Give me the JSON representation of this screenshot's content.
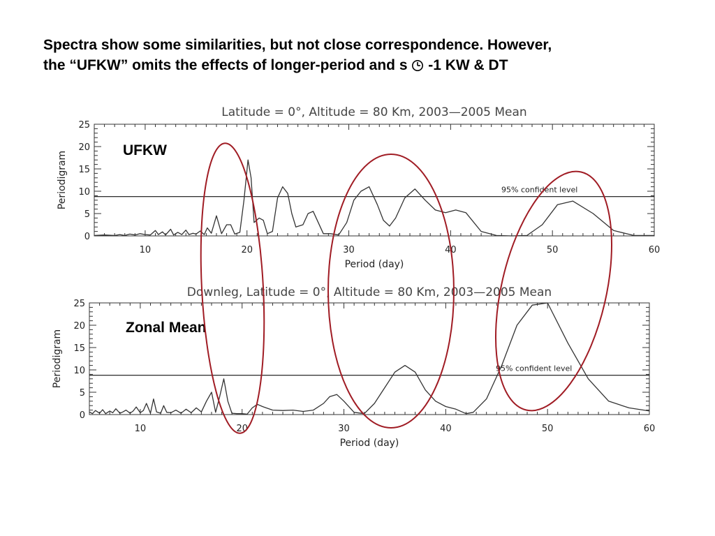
{
  "heading": {
    "line1": "Spectra show some similarities, but not close correspondence.  However,",
    "line2_before": "the “UFKW” omits the effects of longer-period and s",
    "line2_after": "-1 KW & DT",
    "symbol_icon": "clock-icon"
  },
  "colors": {
    "ellipse": "#a01c24",
    "series": "#333333",
    "threshold": "#111111",
    "axes": "#333333"
  },
  "chart_data": [
    {
      "type": "line",
      "label": "UFKW",
      "title": "Latitude = 0°, Altitude = 80 Km, 2003—2005 Mean",
      "xlabel": "Period (day)",
      "ylabel": "Periodigram",
      "xlim": [
        5,
        60
      ],
      "ylim": [
        0,
        25
      ],
      "xticks": [
        10,
        20,
        30,
        40,
        50,
        60
      ],
      "yticks": [
        0,
        5,
        10,
        15,
        20,
        25
      ],
      "grid": false,
      "threshold": {
        "value": 8.8,
        "label": "95% confident level"
      },
      "series": [
        {
          "x": [
            5,
            6,
            7,
            7.5,
            8,
            8.5,
            9,
            9.5,
            10,
            10.5,
            11,
            11.3,
            11.7,
            12,
            12.5,
            12.8,
            13.2,
            13.6,
            14,
            14.3,
            14.7,
            15,
            15.4,
            15.8,
            16.1,
            16.5,
            17,
            17.5,
            18,
            18.4,
            18.8,
            19.3,
            19.7,
            20.1,
            20.4,
            20.7,
            21.2,
            21.6,
            22,
            22.5,
            23,
            23.5,
            24,
            24.4,
            24.8,
            25.5,
            26,
            26.5,
            27,
            27.5,
            28.2,
            29,
            29.8,
            30.5,
            31.2,
            32,
            32.8,
            33.4,
            34,
            34.6,
            35.5,
            36.5,
            37.5,
            38.5,
            39.5,
            40.5,
            41.5,
            43,
            44.5,
            46,
            47.5,
            49,
            50.5,
            52,
            54,
            56,
            58,
            60
          ],
          "y": [
            0.1,
            0.2,
            0.1,
            0.3,
            0.1,
            0.4,
            0.2,
            0.5,
            0.3,
            0.2,
            1.2,
            0.3,
            0.9,
            0.2,
            1.5,
            0.2,
            0.8,
            0.3,
            1.3,
            0.3,
            0.6,
            0.4,
            1.1,
            0.3,
            1.8,
            0.6,
            4.5,
            0.5,
            2.5,
            2.5,
            0.4,
            0.8,
            8.0,
            17.0,
            13.0,
            3.0,
            4.0,
            3.5,
            0.5,
            1.0,
            8.5,
            11.0,
            9.5,
            5.0,
            2.0,
            2.5,
            5.0,
            5.5,
            3.0,
            0.5,
            0.5,
            0.2,
            3.0,
            8.0,
            10.0,
            11.0,
            7.0,
            3.5,
            2.2,
            4.0,
            8.5,
            10.5,
            8.0,
            5.8,
            5.2,
            5.8,
            5.2,
            1.0,
            0.1,
            0.0,
            0.1,
            2.5,
            7.0,
            7.8,
            5.0,
            1.2,
            0.1,
            0.1
          ]
        }
      ]
    },
    {
      "type": "line",
      "label": "Zonal Mean",
      "title": "Downleg, Latitude = 0°, Altitude = 80 Km, 2003—2005 Mean",
      "xlabel": "Period (day)",
      "ylabel": "Periodigram",
      "xlim": [
        5,
        60
      ],
      "ylim": [
        0,
        25
      ],
      "xticks": [
        10,
        20,
        30,
        40,
        50,
        60
      ],
      "yticks": [
        0,
        5,
        10,
        15,
        20,
        25
      ],
      "grid": false,
      "threshold": {
        "value": 8.8,
        "label": "95% confident level"
      },
      "series": [
        {
          "x": [
            5,
            5.3,
            5.6,
            6,
            6.3,
            6.6,
            7,
            7.3,
            7.6,
            8,
            8.3,
            8.6,
            9,
            9.3,
            9.6,
            10,
            10.3,
            10.6,
            11,
            11.3,
            11.6,
            12,
            12.3,
            12.6,
            13,
            13.5,
            14,
            14.5,
            15,
            15.5,
            16,
            16.5,
            17,
            17.4,
            17.8,
            18.2,
            18.6,
            19,
            19.5,
            20,
            20.5,
            21,
            21.5,
            22,
            23,
            24,
            25,
            26,
            27,
            28,
            28.6,
            29.3,
            30,
            31,
            32,
            33,
            34,
            35,
            36,
            37,
            38,
            39,
            40,
            41,
            42,
            42.7,
            44,
            45.5,
            47,
            48.5,
            50,
            52,
            54,
            56,
            58,
            60
          ],
          "y": [
            0.6,
            0.2,
            0.9,
            0.3,
            1.1,
            0.2,
            0.8,
            0.4,
            1.3,
            0.3,
            0.6,
            1.0,
            0.3,
            0.8,
            1.7,
            0.4,
            0.9,
            2.5,
            0.3,
            3.5,
            0.6,
            0.3,
            2.0,
            0.5,
            0.4,
            1.0,
            0.3,
            1.2,
            0.4,
            1.5,
            0.6,
            3.0,
            5.0,
            0.5,
            4.0,
            8.0,
            3.0,
            0.3,
            0.2,
            0.2,
            0.1,
            1.5,
            2.3,
            1.8,
            1.0,
            0.9,
            1.0,
            0.7,
            1.0,
            2.5,
            4.0,
            4.5,
            3.0,
            0.5,
            0.2,
            2.5,
            6.0,
            9.5,
            11.0,
            9.5,
            5.5,
            3.0,
            1.8,
            1.2,
            0.2,
            0.5,
            3.5,
            11.0,
            20.0,
            24.5,
            25.0,
            16.0,
            8.0,
            3.0,
            1.5,
            0.8
          ]
        }
      ]
    }
  ]
}
